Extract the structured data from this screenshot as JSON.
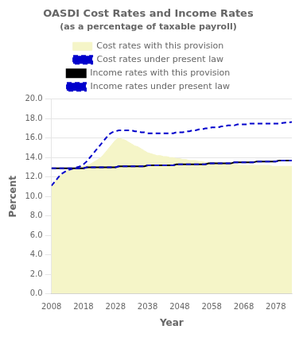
{
  "chart_data": {
    "type": "line",
    "title": "OASDI Cost Rates and Income Rates",
    "subtitle": "(as a percentage of taxable payroll)",
    "xlabel": "Year",
    "ylabel": "Percent",
    "x": [
      2008,
      2009,
      2010,
      2011,
      2012,
      2013,
      2014,
      2015,
      2016,
      2017,
      2018,
      2019,
      2020,
      2021,
      2022,
      2023,
      2024,
      2025,
      2026,
      2027,
      2028,
      2029,
      2030,
      2031,
      2032,
      2033,
      2034,
      2035,
      2036,
      2037,
      2038,
      2039,
      2040,
      2041,
      2042,
      2043,
      2044,
      2045,
      2046,
      2047,
      2048,
      2049,
      2050,
      2051,
      2052,
      2053,
      2054,
      2055,
      2056,
      2057,
      2058,
      2059,
      2060,
      2061,
      2062,
      2063,
      2064,
      2065,
      2066,
      2067,
      2068,
      2069,
      2070,
      2071,
      2072,
      2073,
      2074,
      2075,
      2076,
      2077,
      2078,
      2079,
      2080,
      2081,
      2082,
      2083
    ],
    "xlim": [
      2008,
      2083
    ],
    "xticks": [
      2008,
      2018,
      2028,
      2038,
      2048,
      2058,
      2068,
      2078
    ],
    "ylim": [
      0.0,
      20.0
    ],
    "yticks": [
      {
        "value": 0.0,
        "label": "0.0"
      },
      {
        "value": 2.0,
        "label": "2.0"
      },
      {
        "value": 4.0,
        "label": "4.0"
      },
      {
        "value": 6.0,
        "label": "6.0"
      },
      {
        "value": 8.0,
        "label": "8.0"
      },
      {
        "value": 10.0,
        "label": "10.0"
      },
      {
        "value": 12.0,
        "label": "12.0"
      },
      {
        "value": 14.0,
        "label": "14.0"
      },
      {
        "value": 16.0,
        "label": "16.0"
      },
      {
        "value": 18.0,
        "label": "18.0"
      },
      {
        "value": 20.0,
        "label": "20.0"
      }
    ],
    "grid": "y",
    "legend": "top",
    "series": [
      {
        "name": "Cost rates with this provision",
        "type": "area",
        "color": "#f5f5c8",
        "line_style": "solid",
        "values": [
          11.1,
          11.5,
          11.9,
          12.3,
          12.5,
          12.7,
          12.8,
          12.9,
          13.0,
          13.0,
          13.1,
          13.2,
          13.3,
          13.5,
          13.7,
          13.9,
          14.2,
          14.6,
          15.0,
          15.4,
          15.8,
          16.0,
          15.9,
          15.8,
          15.6,
          15.4,
          15.2,
          15.1,
          14.9,
          14.7,
          14.5,
          14.4,
          14.3,
          14.2,
          14.2,
          14.1,
          14.1,
          14.0,
          14.0,
          13.9,
          13.9,
          13.8,
          13.8,
          13.7,
          13.7,
          13.7,
          13.6,
          13.6,
          13.5,
          13.5,
          13.5,
          13.5,
          13.4,
          13.4,
          13.4,
          13.4,
          13.3,
          13.3,
          13.3,
          13.2,
          13.2,
          13.2,
          13.2,
          13.2,
          13.2,
          13.2,
          13.2,
          13.2,
          13.2,
          13.1,
          13.1,
          13.1,
          13.1,
          13.1,
          13.1,
          13.1
        ]
      },
      {
        "name": "Cost rates under present law",
        "type": "line",
        "color": "#0000cc",
        "line_style": "dashed",
        "values": [
          11.1,
          11.5,
          11.9,
          12.3,
          12.5,
          12.7,
          12.8,
          12.9,
          13.0,
          13.1,
          13.3,
          13.6,
          14.0,
          14.4,
          14.8,
          15.2,
          15.6,
          16.0,
          16.4,
          16.6,
          16.7,
          16.8,
          16.8,
          16.8,
          16.8,
          16.8,
          16.7,
          16.7,
          16.6,
          16.6,
          16.5,
          16.5,
          16.5,
          16.5,
          16.5,
          16.5,
          16.5,
          16.5,
          16.5,
          16.6,
          16.6,
          16.6,
          16.7,
          16.7,
          16.8,
          16.8,
          16.9,
          16.9,
          17.0,
          17.0,
          17.1,
          17.1,
          17.1,
          17.2,
          17.2,
          17.3,
          17.3,
          17.3,
          17.4,
          17.4,
          17.4,
          17.4,
          17.5,
          17.5,
          17.5,
          17.5,
          17.5,
          17.5,
          17.5,
          17.5,
          17.5,
          17.5,
          17.55,
          17.6,
          17.6,
          17.65
        ]
      },
      {
        "name": "Income rates with this provision",
        "type": "line",
        "color": "#000000",
        "line_style": "solid",
        "values": [
          12.9,
          12.9,
          12.9,
          12.9,
          12.9,
          12.9,
          12.9,
          12.9,
          12.9,
          12.9,
          12.9,
          13.0,
          13.0,
          13.0,
          13.0,
          13.0,
          13.0,
          13.0,
          13.0,
          13.0,
          13.0,
          13.1,
          13.1,
          13.1,
          13.1,
          13.1,
          13.1,
          13.1,
          13.1,
          13.1,
          13.2,
          13.2,
          13.2,
          13.2,
          13.2,
          13.2,
          13.2,
          13.2,
          13.2,
          13.3,
          13.3,
          13.3,
          13.3,
          13.3,
          13.3,
          13.3,
          13.3,
          13.3,
          13.3,
          13.4,
          13.4,
          13.4,
          13.4,
          13.4,
          13.4,
          13.4,
          13.4,
          13.5,
          13.5,
          13.5,
          13.5,
          13.5,
          13.5,
          13.5,
          13.6,
          13.6,
          13.6,
          13.6,
          13.6,
          13.6,
          13.6,
          13.7,
          13.7,
          13.7,
          13.7,
          13.7
        ]
      },
      {
        "name": "Income rates under present law",
        "type": "line",
        "color": "#0000cc",
        "line_style": "dashed",
        "values": [
          12.9,
          12.9,
          12.9,
          12.9,
          12.9,
          12.9,
          12.9,
          12.9,
          12.9,
          12.9,
          12.9,
          13.0,
          13.0,
          13.0,
          13.0,
          13.0,
          13.0,
          13.0,
          13.0,
          13.0,
          13.0,
          13.1,
          13.1,
          13.1,
          13.1,
          13.1,
          13.1,
          13.1,
          13.1,
          13.1,
          13.2,
          13.2,
          13.2,
          13.2,
          13.2,
          13.2,
          13.2,
          13.2,
          13.2,
          13.3,
          13.3,
          13.3,
          13.3,
          13.3,
          13.3,
          13.3,
          13.3,
          13.3,
          13.3,
          13.4,
          13.4,
          13.4,
          13.4,
          13.4,
          13.4,
          13.4,
          13.4,
          13.5,
          13.5,
          13.5,
          13.5,
          13.5,
          13.5,
          13.5,
          13.6,
          13.6,
          13.6,
          13.6,
          13.6,
          13.6,
          13.6,
          13.7,
          13.7,
          13.7,
          13.7,
          13.7
        ]
      }
    ]
  }
}
